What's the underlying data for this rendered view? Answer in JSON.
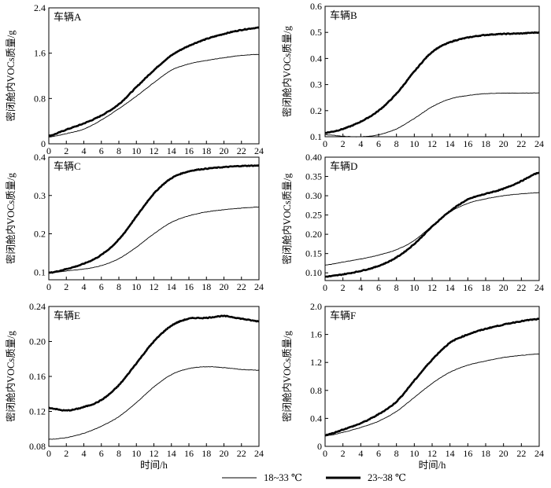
{
  "chart_data": [
    {
      "type": "line",
      "title": "车辆A",
      "xlabel": "",
      "ylabel": "密闭舱内VOCs质量/g",
      "xlim": [
        0,
        24
      ],
      "ylim": [
        0,
        2.4
      ],
      "yticks": [
        0,
        0.8,
        1.6,
        2.4
      ],
      "ytick_labels": [
        "0",
        "0.8",
        "1.6",
        "2.4"
      ],
      "x": [
        0,
        2,
        4,
        6,
        8,
        10,
        12,
        14,
        16,
        18,
        20,
        22,
        24
      ],
      "series": [
        {
          "name": "18~33 ℃",
          "values": [
            0.12,
            0.18,
            0.26,
            0.42,
            0.62,
            0.84,
            1.08,
            1.3,
            1.41,
            1.47,
            1.52,
            1.56,
            1.58
          ]
        },
        {
          "name": "23~38 ℃",
          "values": [
            0.14,
            0.25,
            0.36,
            0.5,
            0.7,
            1.0,
            1.3,
            1.56,
            1.73,
            1.85,
            1.94,
            2.01,
            2.05
          ]
        }
      ]
    },
    {
      "type": "line",
      "title": "车辆B",
      "xlabel": "",
      "ylabel": "密闭舱内VOCs质量/g",
      "xlim": [
        0,
        24
      ],
      "ylim": [
        0.1,
        0.6
      ],
      "yticks": [
        0.1,
        0.2,
        0.3,
        0.4,
        0.5,
        0.6
      ],
      "ytick_labels": [
        "0.1",
        "0.2",
        "0.3",
        "0.4",
        "0.5",
        "0.6"
      ],
      "x": [
        0,
        2,
        4,
        6,
        8,
        10,
        12,
        14,
        16,
        18,
        20,
        22,
        24
      ],
      "series": [
        {
          "name": "18~33 ℃",
          "values": [
            0.108,
            0.102,
            0.1,
            0.108,
            0.13,
            0.17,
            0.215,
            0.245,
            0.258,
            0.265,
            0.267,
            0.267,
            0.268
          ]
        },
        {
          "name": "23~38 ℃",
          "values": [
            0.115,
            0.13,
            0.158,
            0.2,
            0.265,
            0.35,
            0.425,
            0.462,
            0.48,
            0.49,
            0.494,
            0.496,
            0.5
          ]
        }
      ]
    },
    {
      "type": "line",
      "title": "车辆C",
      "xlabel": "",
      "ylabel": "密闭舱内VOCs质量/g",
      "xlim": [
        0,
        24
      ],
      "ylim": [
        0.08,
        0.4
      ],
      "yticks": [
        0.1,
        0.2,
        0.3,
        0.4
      ],
      "ytick_labels": [
        "0.1",
        "0.2",
        "0.3",
        "0.4"
      ],
      "x": [
        0,
        2,
        4,
        6,
        8,
        10,
        12,
        14,
        16,
        18,
        20,
        22,
        24
      ],
      "series": [
        {
          "name": "18~33 ℃",
          "values": [
            0.098,
            0.103,
            0.108,
            0.117,
            0.135,
            0.165,
            0.2,
            0.23,
            0.247,
            0.257,
            0.263,
            0.267,
            0.27
          ]
        },
        {
          "name": "23~38 ℃",
          "values": [
            0.098,
            0.108,
            0.122,
            0.145,
            0.185,
            0.245,
            0.305,
            0.345,
            0.363,
            0.37,
            0.374,
            0.377,
            0.378
          ]
        }
      ]
    },
    {
      "type": "line",
      "title": "车辆D",
      "xlabel": "",
      "ylabel": "密闭舱内VOCs质量/g",
      "xlim": [
        0,
        24
      ],
      "ylim": [
        0.08,
        0.4
      ],
      "yticks": [
        0.1,
        0.15,
        0.2,
        0.25,
        0.3,
        0.35,
        0.4
      ],
      "ytick_labels": [
        "0.10",
        "0.15",
        "0.20",
        "0.25",
        "0.30",
        "0.35",
        "0.40"
      ],
      "x": [
        0,
        2,
        4,
        6,
        8,
        10,
        12,
        14,
        16,
        18,
        20,
        22,
        24
      ],
      "series": [
        {
          "name": "18~33 ℃",
          "values": [
            0.12,
            0.128,
            0.136,
            0.146,
            0.16,
            0.184,
            0.222,
            0.258,
            0.28,
            0.292,
            0.3,
            0.305,
            0.308
          ]
        },
        {
          "name": "23~38 ℃",
          "values": [
            0.09,
            0.096,
            0.105,
            0.118,
            0.14,
            0.175,
            0.22,
            0.26,
            0.29,
            0.305,
            0.318,
            0.338,
            0.36
          ]
        }
      ]
    },
    {
      "type": "line",
      "title": "车辆E",
      "xlabel": "时间/h",
      "ylabel": "密闭舱内VOCs质量/g",
      "xlim": [
        0,
        24
      ],
      "ylim": [
        0.08,
        0.24
      ],
      "yticks": [
        0.08,
        0.12,
        0.16,
        0.2,
        0.24
      ],
      "ytick_labels": [
        "0.08",
        "0.12",
        "0.16",
        "0.20",
        "0.24"
      ],
      "x": [
        0,
        2,
        4,
        6,
        8,
        10,
        12,
        14,
        16,
        18,
        20,
        22,
        24
      ],
      "series": [
        {
          "name": "18~33 ℃",
          "values": [
            0.088,
            0.09,
            0.095,
            0.103,
            0.114,
            0.13,
            0.148,
            0.162,
            0.169,
            0.171,
            0.17,
            0.168,
            0.167
          ]
        },
        {
          "name": "23~38 ℃",
          "values": [
            0.124,
            0.121,
            0.125,
            0.133,
            0.15,
            0.175,
            0.2,
            0.218,
            0.226,
            0.227,
            0.229,
            0.226,
            0.223
          ]
        }
      ]
    },
    {
      "type": "line",
      "title": "车辆F",
      "xlabel": "时间/h",
      "ylabel": "密闭舱内VOCs质量/g",
      "xlim": [
        0,
        24
      ],
      "ylim": [
        0,
        2.0
      ],
      "yticks": [
        0,
        0.4,
        0.8,
        1.2,
        1.6,
        2.0
      ],
      "ytick_labels": [
        "0",
        "0.4",
        "0.8",
        "1.2",
        "1.6",
        "2.0"
      ],
      "x": [
        0,
        2,
        4,
        6,
        8,
        10,
        12,
        14,
        16,
        18,
        20,
        22,
        24
      ],
      "series": [
        {
          "name": "18~33 ℃",
          "values": [
            0.15,
            0.2,
            0.27,
            0.36,
            0.5,
            0.7,
            0.9,
            1.06,
            1.16,
            1.22,
            1.27,
            1.3,
            1.32
          ]
        },
        {
          "name": "23~38 ℃",
          "values": [
            0.16,
            0.24,
            0.33,
            0.46,
            0.64,
            0.94,
            1.24,
            1.48,
            1.6,
            1.68,
            1.74,
            1.79,
            1.82
          ]
        }
      ]
    }
  ],
  "xtick_labels": [
    "0",
    "2",
    "4",
    "6",
    "8",
    "10",
    "12",
    "14",
    "16",
    "18",
    "20",
    "22",
    "24"
  ],
  "legend": {
    "items": [
      {
        "label": "18~33 ℃",
        "style": "thin"
      },
      {
        "label": "23~38 ℃",
        "style": "thick"
      }
    ]
  }
}
